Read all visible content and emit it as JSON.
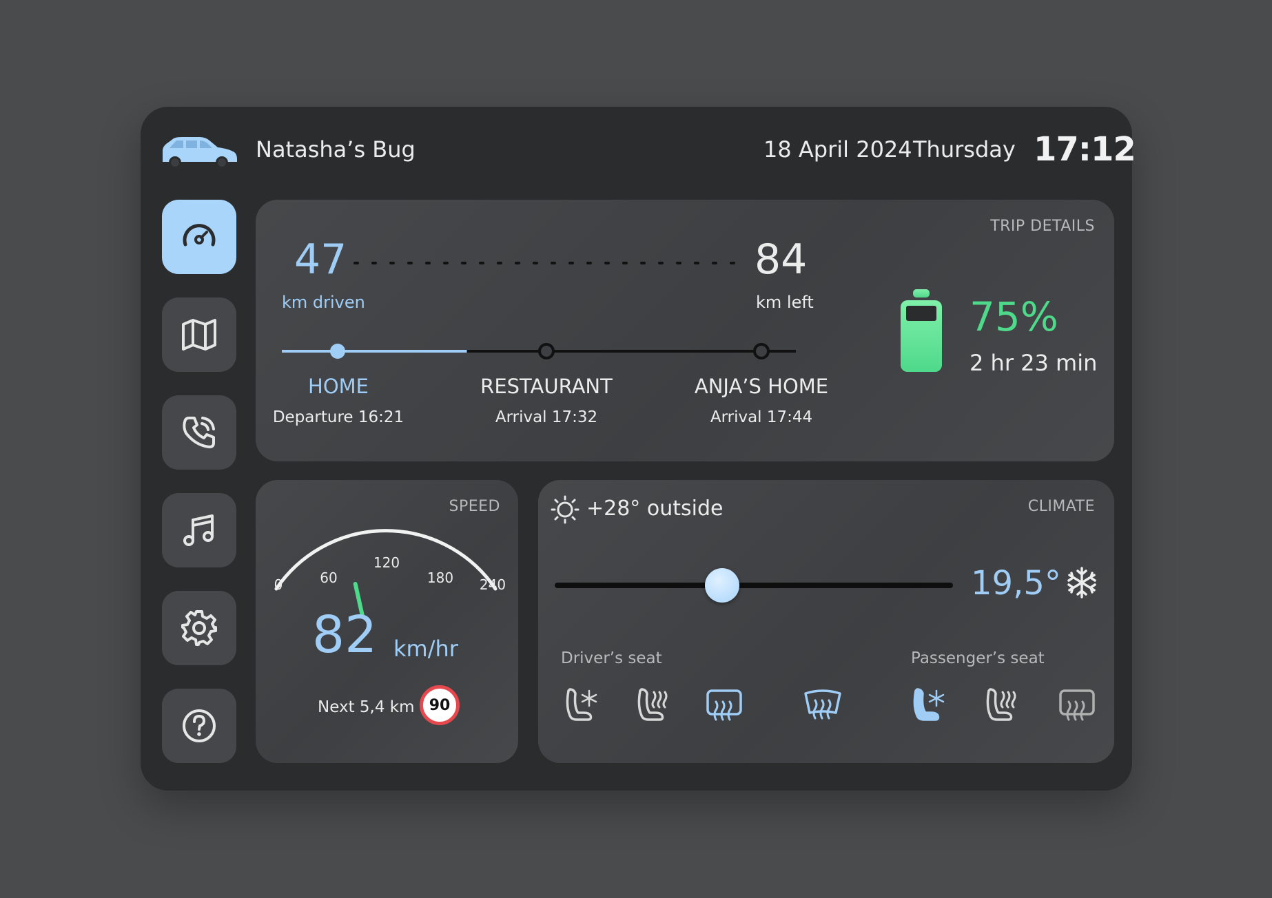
{
  "header": {
    "car_name": "Natasha’s Bug",
    "date": "18 April 2024",
    "day": "Thursday",
    "time": "17:12"
  },
  "sidebar": {
    "items": [
      {
        "name": "dashboard",
        "icon": "speedometer-icon",
        "active": true
      },
      {
        "name": "map",
        "icon": "map-icon",
        "active": false
      },
      {
        "name": "phone",
        "icon": "phone-icon",
        "active": false
      },
      {
        "name": "music",
        "icon": "music-icon",
        "active": false
      },
      {
        "name": "settings",
        "icon": "gear-icon",
        "active": false
      },
      {
        "name": "help",
        "icon": "help-icon",
        "active": false
      }
    ]
  },
  "trip": {
    "label": "TRIP DETAILS",
    "km_driven": "47",
    "km_driven_label": "km driven",
    "km_left": "84",
    "km_left_label": "km left",
    "stops": [
      {
        "name": "HOME",
        "detail": "Departure 16:21"
      },
      {
        "name": "RESTAURANT",
        "detail": "Arrival 17:32"
      },
      {
        "name": "ANJA’S HOME",
        "detail": "Arrival 17:44"
      }
    ],
    "progress_fraction": 0.36,
    "battery_percent": "75%",
    "battery_level": 0.75,
    "battery_time": "2 hr 23 min"
  },
  "speed": {
    "label": "SPEED",
    "value": "82",
    "unit": "km/hr",
    "max": 240,
    "ticks": [
      "0",
      "60",
      "120",
      "180",
      "240"
    ],
    "needle_value": 82,
    "next_limit_text": "Next 5,4 km",
    "limit_value": "90"
  },
  "climate": {
    "label": "CLIMATE",
    "outside": "+28° outside",
    "setpoint": "19,5°",
    "slider_fraction": 0.42,
    "driver_label": "Driver’s seat",
    "passenger_label": "Passenger’s seat"
  },
  "colors": {
    "accent_blue": "#9fcdf5",
    "battery_green": "#4fd98a",
    "limit_red": "#e5484d"
  }
}
